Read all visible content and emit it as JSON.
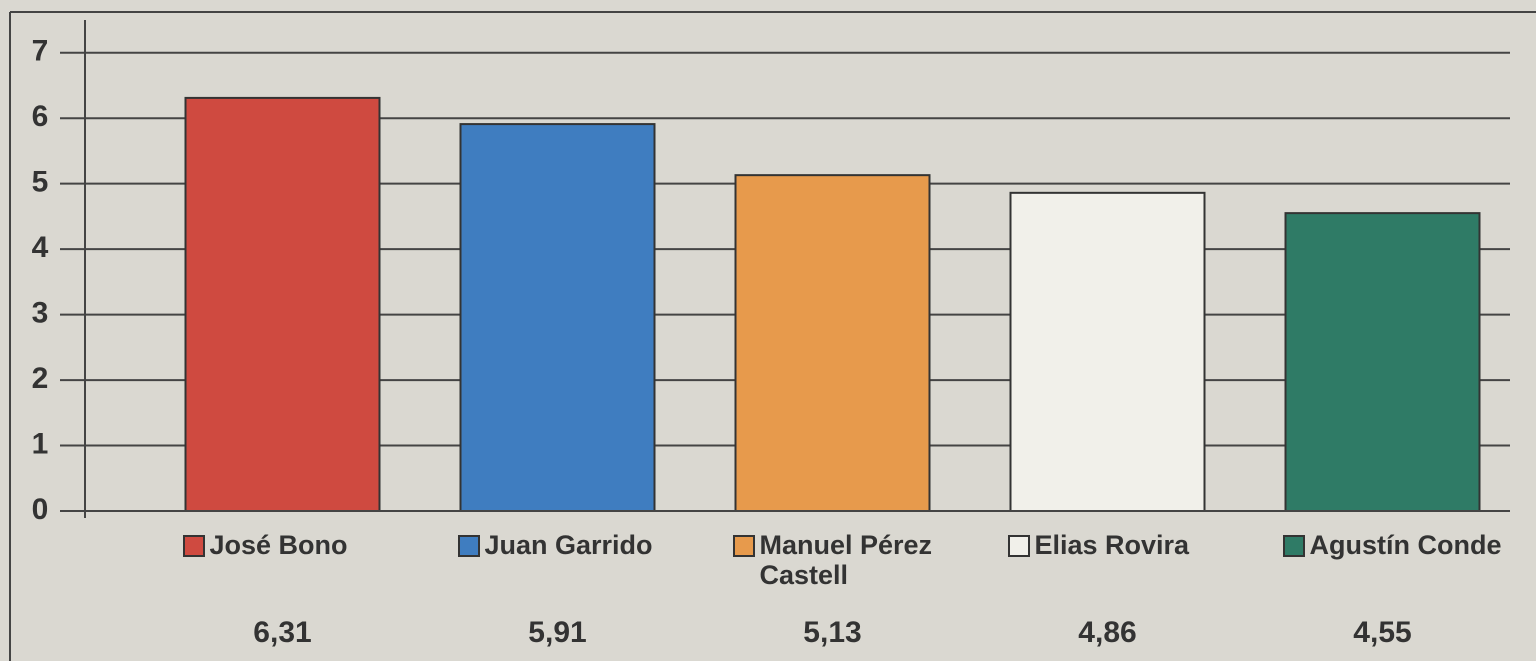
{
  "chart_data": {
    "type": "bar",
    "categories": [
      "José Bono",
      "Juan Garrido",
      "Manuel Pérez Castell",
      "Elias Rovira",
      "Agustín Conde"
    ],
    "values": [
      6.31,
      5.91,
      5.13,
      4.86,
      4.55
    ],
    "value_labels": [
      "6,31",
      "5,91",
      "5,13",
      "4,86",
      "4,55"
    ],
    "colors": [
      "#cf4a40",
      "#3f7dc0",
      "#e79a4c",
      "#f1f0ea",
      "#2f7b66"
    ],
    "ylim": [
      0,
      7.5
    ],
    "yticks": [
      0,
      1,
      2,
      3,
      4,
      5,
      6,
      7
    ],
    "grid": true
  }
}
